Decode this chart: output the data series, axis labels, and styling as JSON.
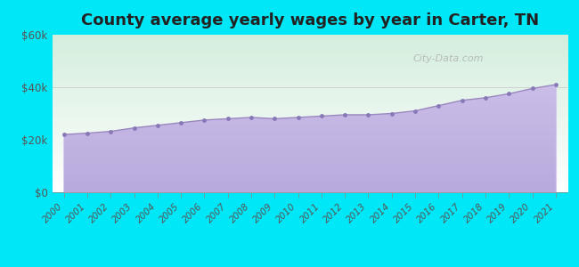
{
  "title": "County average yearly wages by year in Carter, TN",
  "years": [
    2000,
    2001,
    2002,
    2003,
    2004,
    2005,
    2006,
    2007,
    2008,
    2009,
    2010,
    2011,
    2012,
    2013,
    2014,
    2015,
    2016,
    2017,
    2018,
    2019,
    2020,
    2021
  ],
  "wages": [
    22000,
    22500,
    23200,
    24500,
    25500,
    26500,
    27500,
    28000,
    28500,
    28000,
    28500,
    29000,
    29500,
    29500,
    30000,
    31000,
    33000,
    35000,
    36000,
    37500,
    39500,
    41000
  ],
  "ylim": [
    0,
    60000
  ],
  "yticks": [
    0,
    20000,
    40000,
    60000
  ],
  "ytick_labels": [
    "$0",
    "$20k",
    "$40k",
    "$60k"
  ],
  "fill_color_top": "#d4c5ee",
  "fill_color_bottom": "#b8aadc",
  "line_color": "#9b87c0",
  "dot_color": "#8878b8",
  "bg_top_left": "#d4eedd",
  "bg_bottom_right": "#ffffff",
  "outer_bg": "#00e8f8",
  "title_fontsize": 13,
  "watermark": "City-Data.com",
  "grid_color": "#cccccc"
}
